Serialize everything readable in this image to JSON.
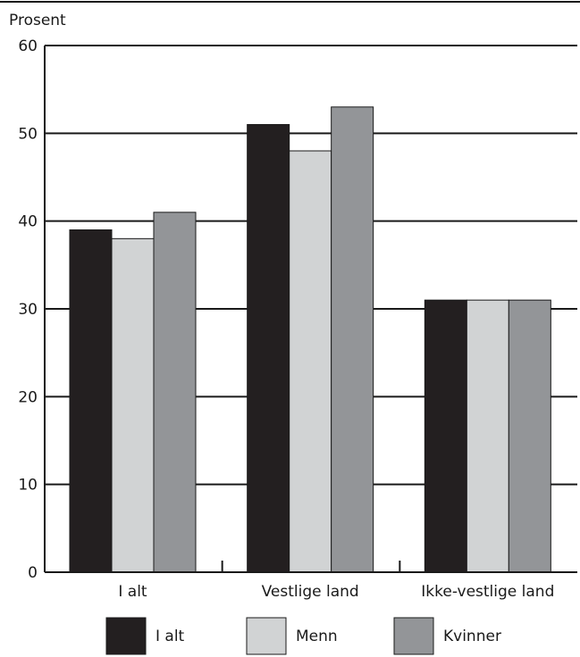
{
  "chart_data": {
    "type": "bar",
    "ylabel": "Prosent",
    "ylim": [
      0,
      60
    ],
    "yticks": [
      0,
      10,
      20,
      30,
      40,
      50,
      60
    ],
    "categories": [
      "I alt",
      "Vestlige land",
      "Ikke-vestlige land"
    ],
    "series": [
      {
        "name": "I alt",
        "color": "#231f20",
        "values": [
          39,
          51,
          31
        ]
      },
      {
        "name": "Menn",
        "color": "#d1d3d4",
        "values": [
          38,
          48,
          31
        ]
      },
      {
        "name": "Kvinner",
        "color": "#939598",
        "values": [
          41,
          53,
          31
        ]
      }
    ],
    "grid": true,
    "legend": "bottom"
  }
}
